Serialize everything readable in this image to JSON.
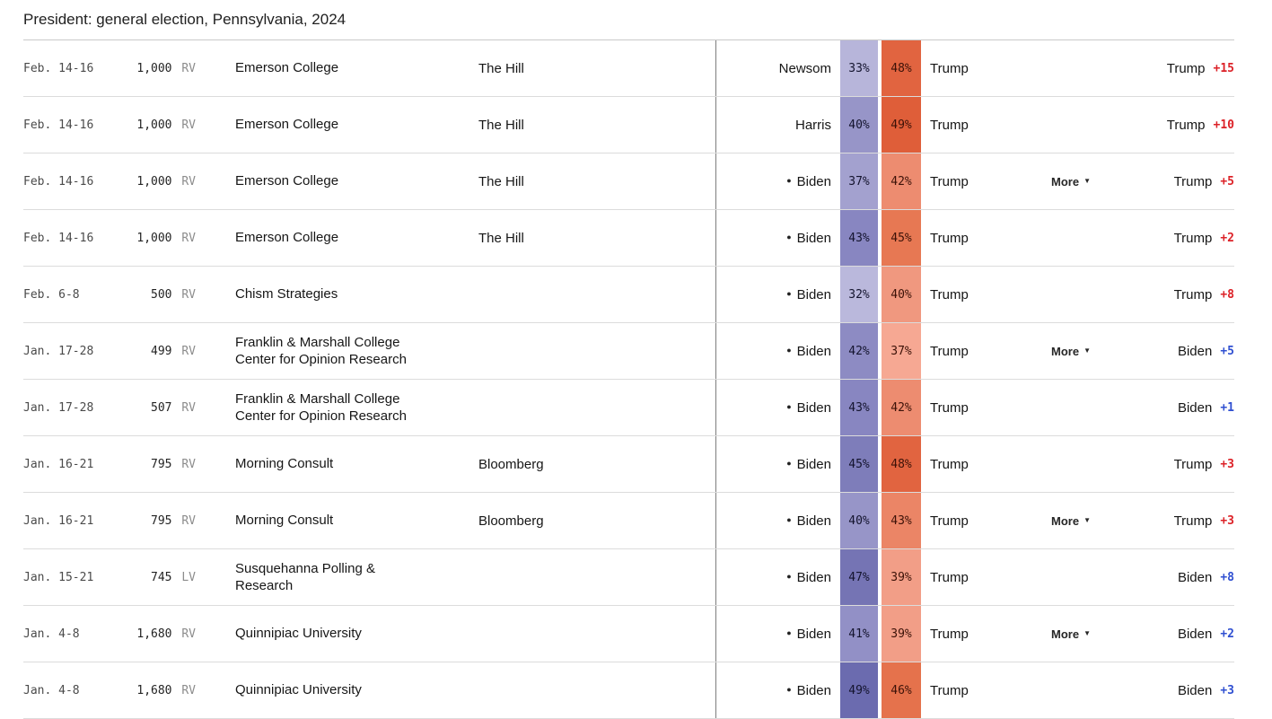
{
  "page_title": "President: general election, Pennsylvania, 2024",
  "colors": {
    "rep_margin": "#dc2127",
    "dem_margin": "#2f4fd1",
    "divider": "#7d7d7d",
    "row_line": "#dcdcdc",
    "header_line": "#c9c9c9"
  },
  "table": {
    "more_label": "More",
    "more_arrow": "▼",
    "incumbent_dot": "●",
    "rows": [
      {
        "dates": "Feb. 14-16",
        "sample": "1,000",
        "sample_type": "RV",
        "pollster": "Emerson College",
        "sponsor": "The Hill",
        "dem_candidate": "Newsom",
        "incumbent": false,
        "dem_pct": "33%",
        "rep_pct": "48%",
        "rep_candidate": "Trump",
        "more": false,
        "leader": "Trump",
        "margin": "+15",
        "leader_party": "rep",
        "dem_color": "#b7b5da",
        "rep_color": "#e16440"
      },
      {
        "dates": "Feb. 14-16",
        "sample": "1,000",
        "sample_type": "RV",
        "pollster": "Emerson College",
        "sponsor": "The Hill",
        "dem_candidate": "Harris",
        "incumbent": false,
        "dem_pct": "40%",
        "rep_pct": "49%",
        "rep_candidate": "Trump",
        "more": false,
        "leader": "Trump",
        "margin": "+10",
        "leader_party": "rep",
        "dem_color": "#9795c8",
        "rep_color": "#df5e39"
      },
      {
        "dates": "Feb. 14-16",
        "sample": "1,000",
        "sample_type": "RV",
        "pollster": "Emerson College",
        "sponsor": "The Hill",
        "dem_candidate": "Biden",
        "incumbent": true,
        "dem_pct": "37%",
        "rep_pct": "42%",
        "rep_candidate": "Trump",
        "more": true,
        "leader": "Trump",
        "margin": "+5",
        "leader_party": "rep",
        "dem_color": "#a3a1cf",
        "rep_color": "#ed8c70"
      },
      {
        "dates": "Feb. 14-16",
        "sample": "1,000",
        "sample_type": "RV",
        "pollster": "Emerson College",
        "sponsor": "The Hill",
        "dem_candidate": "Biden",
        "incumbent": true,
        "dem_pct": "43%",
        "rep_pct": "45%",
        "rep_candidate": "Trump",
        "more": false,
        "leader": "Trump",
        "margin": "+2",
        "leader_party": "rep",
        "dem_color": "#8886c1",
        "rep_color": "#e77853"
      },
      {
        "dates": "Feb. 6-8",
        "sample": "500",
        "sample_type": "RV",
        "pollster": "Chism Strategies",
        "sponsor": "",
        "dem_candidate": "Biden",
        "incumbent": true,
        "dem_pct": "32%",
        "rep_pct": "40%",
        "rep_candidate": "Trump",
        "more": false,
        "leader": "Trump",
        "margin": "+8",
        "leader_party": "rep",
        "dem_color": "#bab8dc",
        "rep_color": "#f0987f"
      },
      {
        "dates": "Jan. 17-28",
        "sample": "499",
        "sample_type": "RV",
        "pollster": "Franklin & Marshall College\nCenter for Opinion Research",
        "sponsor": "",
        "dem_candidate": "Biden",
        "incumbent": true,
        "dem_pct": "42%",
        "rep_pct": "37%",
        "rep_candidate": "Trump",
        "more": true,
        "leader": "Biden",
        "margin": "+5",
        "leader_party": "dem",
        "dem_color": "#8d8bc3",
        "rep_color": "#f6a893"
      },
      {
        "dates": "Jan. 17-28",
        "sample": "507",
        "sample_type": "RV",
        "pollster": "Franklin & Marshall College\nCenter for Opinion Research",
        "sponsor": "",
        "dem_candidate": "Biden",
        "incumbent": true,
        "dem_pct": "43%",
        "rep_pct": "42%",
        "rep_candidate": "Trump",
        "more": false,
        "leader": "Biden",
        "margin": "+1",
        "leader_party": "dem",
        "dem_color": "#8886c1",
        "rep_color": "#ed8c70"
      },
      {
        "dates": "Jan. 16-21",
        "sample": "795",
        "sample_type": "RV",
        "pollster": "Morning Consult",
        "sponsor": "Bloomberg",
        "dem_candidate": "Biden",
        "incumbent": true,
        "dem_pct": "45%",
        "rep_pct": "48%",
        "rep_candidate": "Trump",
        "more": false,
        "leader": "Trump",
        "margin": "+3",
        "leader_party": "rep",
        "dem_color": "#7e7dba",
        "rep_color": "#e16440"
      },
      {
        "dates": "Jan. 16-21",
        "sample": "795",
        "sample_type": "RV",
        "pollster": "Morning Consult",
        "sponsor": "Bloomberg",
        "dem_candidate": "Biden",
        "incumbent": true,
        "dem_pct": "40%",
        "rep_pct": "43%",
        "rep_candidate": "Trump",
        "more": true,
        "leader": "Trump",
        "margin": "+3",
        "leader_party": "rep",
        "dem_color": "#9795c8",
        "rep_color": "#eb8566"
      },
      {
        "dates": "Jan. 15-21",
        "sample": "745",
        "sample_type": "LV",
        "pollster": "Susquehanna Polling &\nResearch",
        "sponsor": "",
        "dem_candidate": "Biden",
        "incumbent": true,
        "dem_pct": "47%",
        "rep_pct": "39%",
        "rep_candidate": "Trump",
        "more": false,
        "leader": "Biden",
        "margin": "+8",
        "leader_party": "dem",
        "dem_color": "#7574b4",
        "rep_color": "#f29e87"
      },
      {
        "dates": "Jan. 4-8",
        "sample": "1,680",
        "sample_type": "RV",
        "pollster": "Quinnipiac University",
        "sponsor": "",
        "dem_candidate": "Biden",
        "incumbent": true,
        "dem_pct": "41%",
        "rep_pct": "39%",
        "rep_candidate": "Trump",
        "more": true,
        "leader": "Biden",
        "margin": "+2",
        "leader_party": "dem",
        "dem_color": "#9290c6",
        "rep_color": "#f29e87"
      },
      {
        "dates": "Jan. 4-8",
        "sample": "1,680",
        "sample_type": "RV",
        "pollster": "Quinnipiac University",
        "sponsor": "",
        "dem_candidate": "Biden",
        "incumbent": true,
        "dem_pct": "49%",
        "rep_pct": "46%",
        "rep_candidate": "Trump",
        "more": false,
        "leader": "Biden",
        "margin": "+3",
        "leader_party": "dem",
        "dem_color": "#6b6baf",
        "rep_color": "#e5724c"
      }
    ]
  }
}
